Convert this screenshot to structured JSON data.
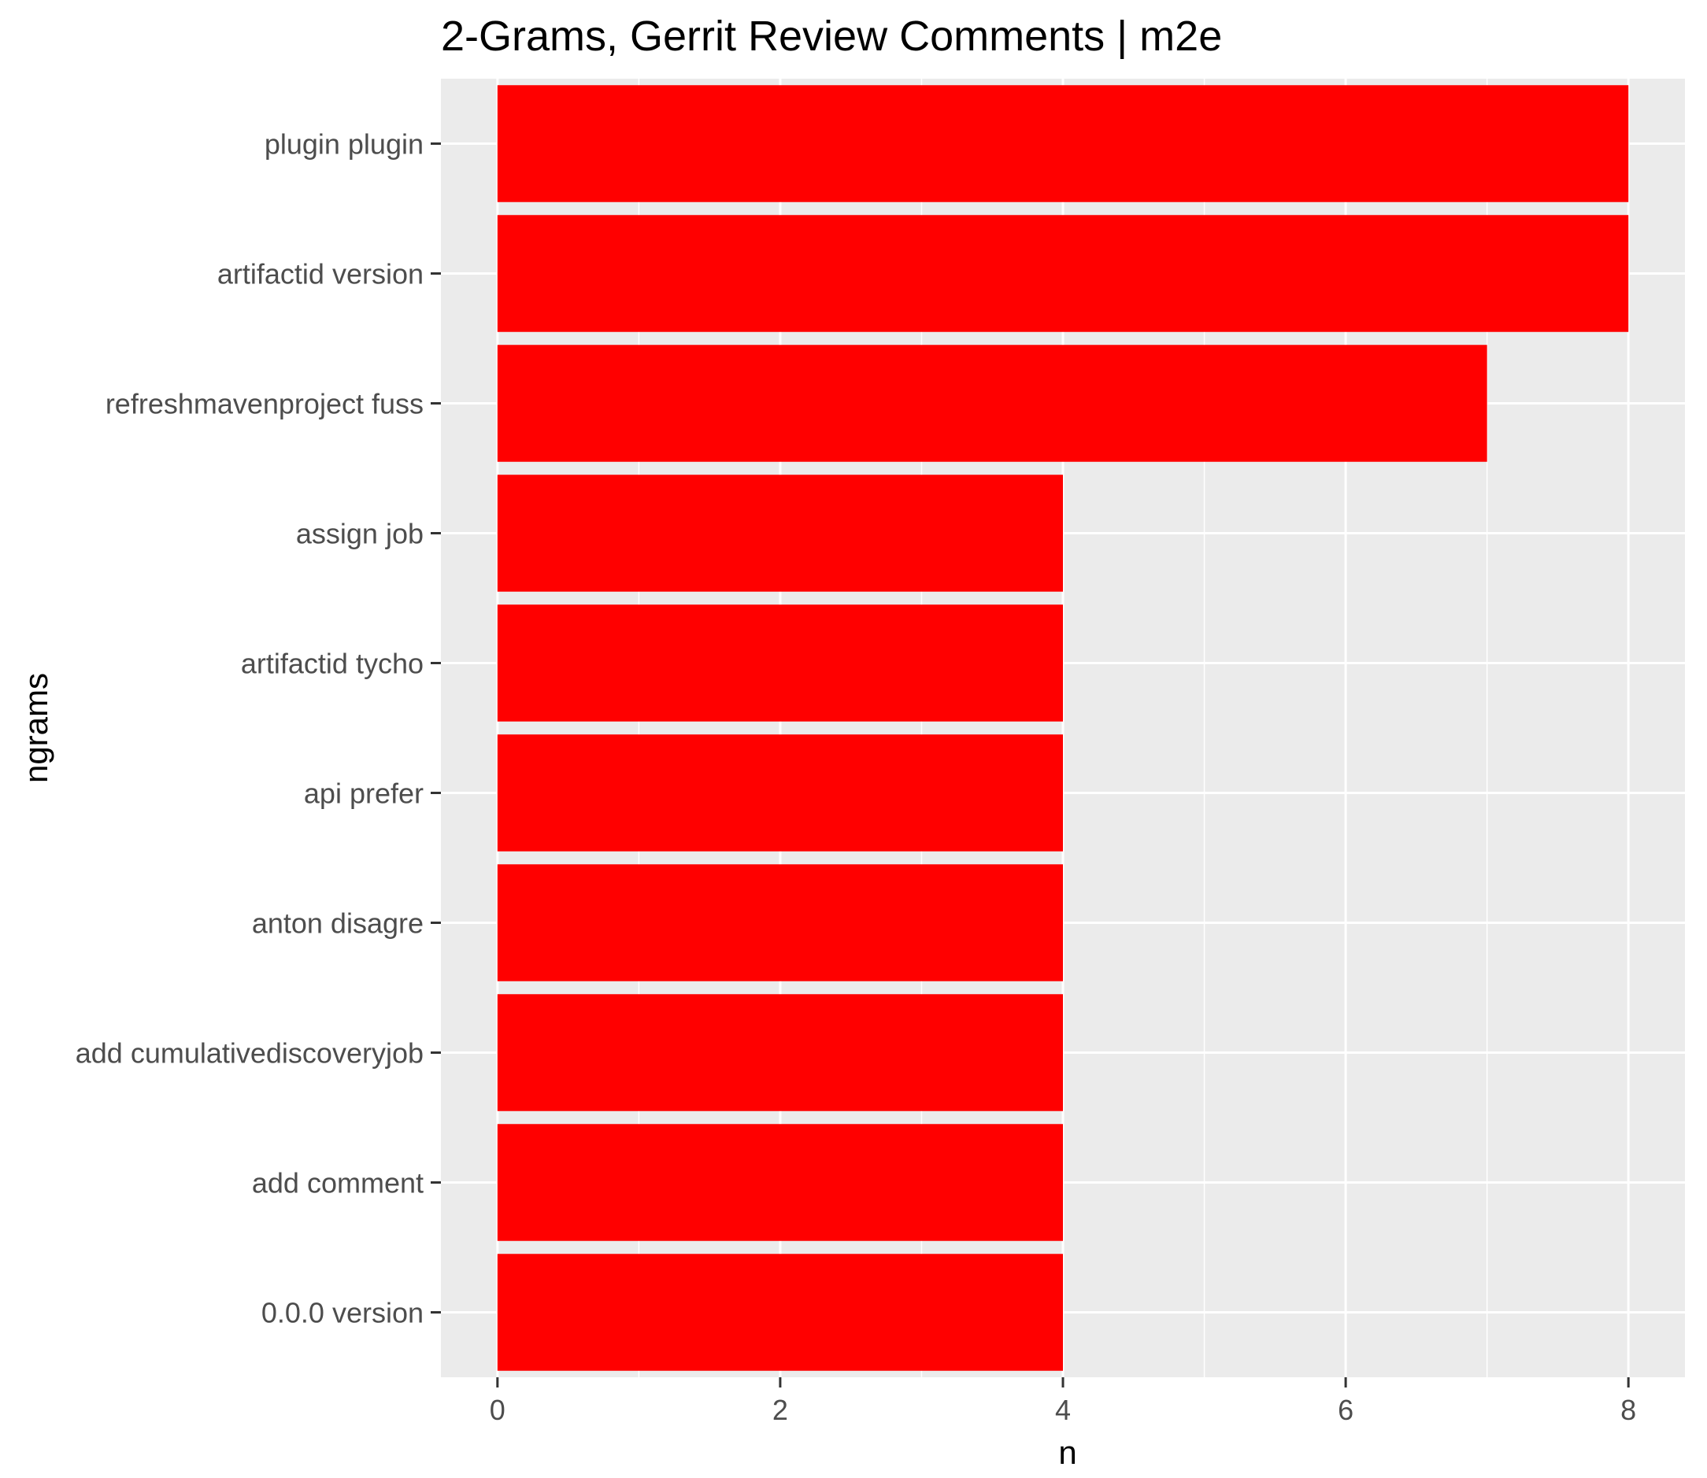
{
  "chart_data": {
    "type": "bar",
    "orientation": "horizontal",
    "title": "2-Grams, Gerrit Review Comments | m2e",
    "xlabel": "n",
    "ylabel": "ngrams",
    "categories": [
      "plugin plugin",
      "artifactid version",
      "refreshmavenproject fuss",
      "assign job",
      "artifactid tycho",
      "api prefer",
      "anton disagre",
      "add cumulativediscoveryjob",
      "add comment",
      "0.0.0 version"
    ],
    "values": [
      8,
      8,
      7,
      4,
      4,
      4,
      4,
      4,
      4,
      4
    ],
    "xlim": [
      -0.4,
      8.4
    ],
    "x_ticks": [
      "0",
      "2",
      "4",
      "6",
      "8"
    ],
    "grid": true,
    "colors": {
      "bar": "#ff0000",
      "panel": "#ebebeb",
      "gridline": "#ffffff",
      "tick_mark": "#333333"
    }
  }
}
